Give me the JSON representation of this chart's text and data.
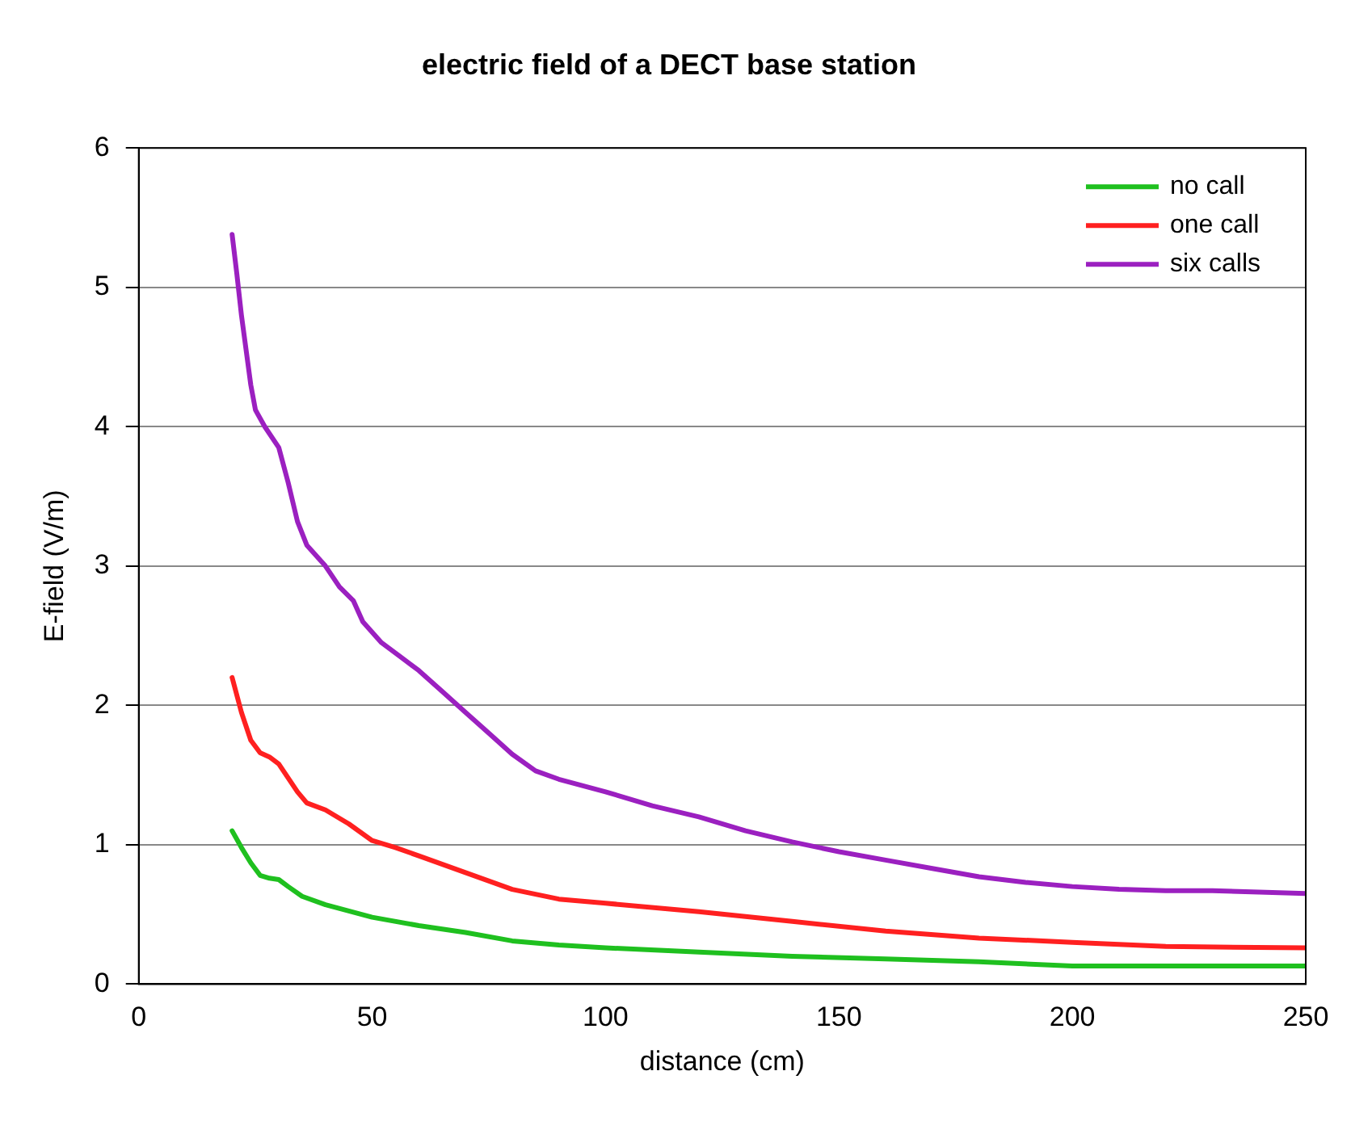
{
  "chart_data": {
    "type": "line",
    "title": "electric field of a DECT base station",
    "xlabel": "distance (cm)",
    "ylabel": "E-field (V/m)",
    "xlim": [
      0,
      250
    ],
    "xticks": [
      0,
      50,
      100,
      150,
      200,
      250
    ],
    "ylim": [
      0,
      6
    ],
    "yticks": [
      0,
      1,
      2,
      3,
      4,
      5,
      6
    ],
    "grid": "y",
    "legend": "top right",
    "marker": "none",
    "line_style": "solid",
    "series": [
      {
        "name": "no call",
        "color": "#1fc01f",
        "x": [
          20,
          22,
          24,
          26,
          28,
          30,
          32,
          35,
          40,
          50,
          60,
          70,
          80,
          90,
          100,
          120,
          140,
          160,
          180,
          200,
          250
        ],
        "values": [
          1.1,
          0.98,
          0.87,
          0.78,
          0.76,
          0.75,
          0.7,
          0.63,
          0.57,
          0.48,
          0.42,
          0.37,
          0.31,
          0.28,
          0.26,
          0.23,
          0.2,
          0.18,
          0.16,
          0.13,
          0.13
        ]
      },
      {
        "name": "one call",
        "color": "#ff2020",
        "x": [
          20,
          22,
          24,
          26,
          28,
          30,
          32,
          34,
          36,
          40,
          45,
          50,
          55,
          60,
          70,
          80,
          90,
          100,
          120,
          140,
          160,
          180,
          200,
          220,
          250
        ],
        "values": [
          2.2,
          1.95,
          1.75,
          1.66,
          1.63,
          1.58,
          1.48,
          1.38,
          1.3,
          1.25,
          1.15,
          1.03,
          0.98,
          0.92,
          0.8,
          0.68,
          0.61,
          0.58,
          0.52,
          0.45,
          0.38,
          0.33,
          0.3,
          0.27,
          0.26
        ]
      },
      {
        "name": "six calls",
        "color": "#9b20c0",
        "x": [
          20,
          21,
          22,
          24,
          25,
          27,
          30,
          32,
          34,
          36,
          40,
          43,
          46,
          48,
          52,
          56,
          60,
          65,
          70,
          75,
          80,
          85,
          90,
          100,
          110,
          120,
          130,
          140,
          150,
          160,
          170,
          180,
          190,
          200,
          210,
          220,
          230,
          240,
          250
        ],
        "values": [
          5.38,
          5.1,
          4.8,
          4.3,
          4.12,
          4.0,
          3.85,
          3.6,
          3.32,
          3.15,
          3.0,
          2.85,
          2.75,
          2.6,
          2.45,
          2.35,
          2.25,
          2.1,
          1.95,
          1.8,
          1.65,
          1.53,
          1.47,
          1.38,
          1.28,
          1.2,
          1.1,
          1.02,
          0.95,
          0.89,
          0.83,
          0.77,
          0.73,
          0.7,
          0.68,
          0.67,
          0.67,
          0.66,
          0.65
        ]
      }
    ]
  }
}
